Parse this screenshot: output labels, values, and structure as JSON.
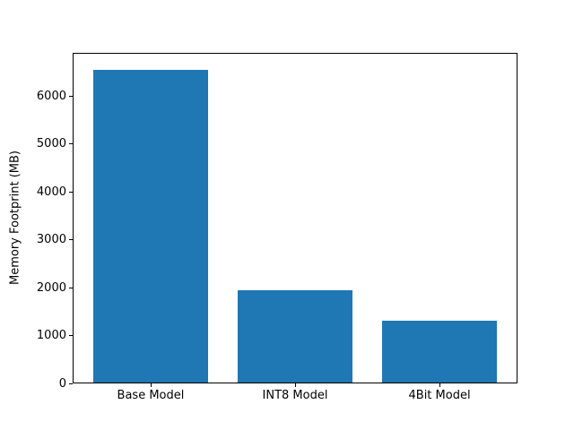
{
  "chart_data": {
    "type": "bar",
    "categories": [
      "Base Model",
      "INT8 Model",
      "4Bit Model"
    ],
    "values": [
      6570,
      1940,
      1290
    ],
    "title": "",
    "xlabel": "",
    "ylabel": "Memory Footprint (MB)",
    "yticks": [
      0,
      1000,
      2000,
      3000,
      4000,
      5000,
      6000
    ],
    "ylim": [
      0,
      6900
    ],
    "bar_color": "#1f77b4",
    "grid": false,
    "legend": "none",
    "background_color": "#ffffff",
    "axis_color": "#000000"
  }
}
